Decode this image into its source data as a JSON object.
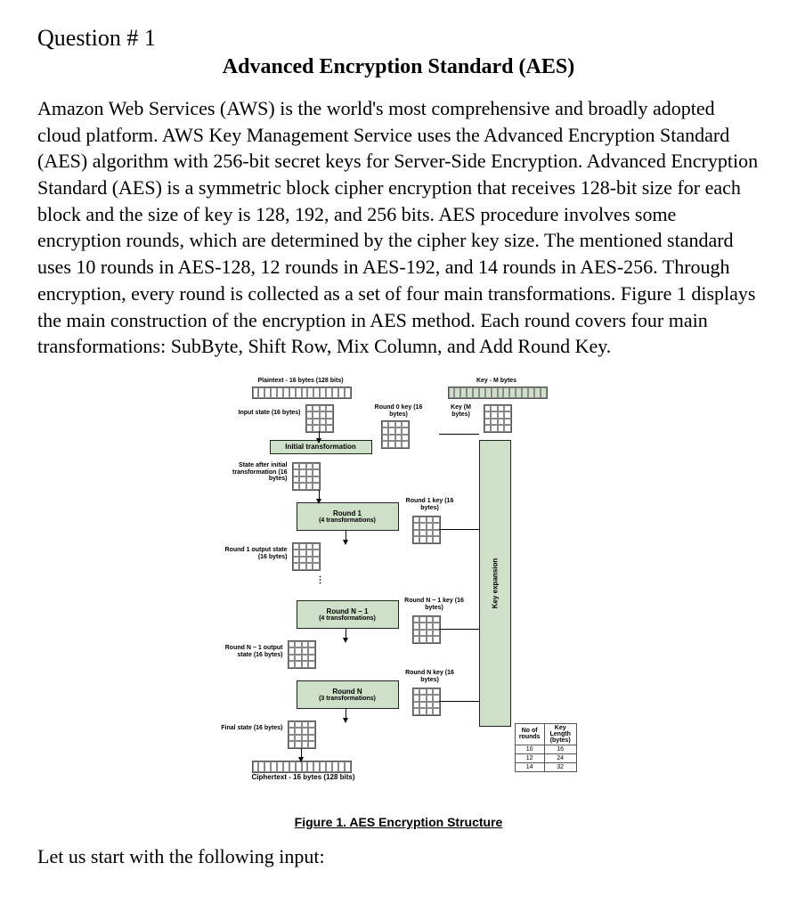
{
  "question_heading": "Question # 1",
  "title": "Advanced Encryption Standard (AES)",
  "body": "Amazon Web Services (AWS) is the world's most comprehensive and broadly adopted cloud platform. AWS Key Management Service uses the Advanced Encryption Standard (AES) algorithm with 256-bit secret keys for Server-Side Encryption. Advanced Encryption Standard (AES) is a symmetric block cipher encryption that receives 128-bit size for each block and the size of key is 128, 192, and 256 bits. AES procedure involves some encryption rounds, which are determined by the cipher key size. The mentioned standard uses 10 rounds in AES-128, 12 rounds in AES-192, and 14 rounds in AES-256. Through encryption, every round is collected as a set of four main transformations. Figure 1 displays the main construction of the encryption in AES method. Each round covers four main transformations: SubByte, Shift Row, Mix Column, and Add Round Key.",
  "closing": "Let us start with the following input:",
  "figure": {
    "caption": "Figure 1. AES Encryption Structure",
    "colors": {
      "box_fill": "#cfe0c9",
      "box_border": "#222222",
      "grid_border": "#888888",
      "bg": "#ffffff",
      "text": "#000000"
    },
    "plaintext_label": "Plaintext - 16 bytes (128 bits)",
    "key_label_top": "Key - M bytes",
    "input_state": "Input state\n(16 bytes)",
    "round0_key": "Round 0 key\n(16 bytes)",
    "key_m": "Key\n(M bytes)",
    "initial_trans": "Initial transformation",
    "state_after_initial": "State after\ninitial\ntransformation\n(16 bytes)",
    "round1_box": {
      "main": "Round 1",
      "sub": "(4 transformations)"
    },
    "round1_key": "Round 1 key\n(16 bytes)",
    "round1_out": "Round 1\noutput state\n(16 bytes)",
    "roundNm1_box": {
      "main": "Round N − 1",
      "sub": "(4 transformations)"
    },
    "roundNm1_key": "Round N − 1 key\n(16 bytes)",
    "roundNm1_out": "Round N − 1\noutput state\n(16 bytes)",
    "roundN_box": {
      "main": "Round N",
      "sub": "(3 transformations)"
    },
    "roundN_key": "Round N key\n(16 bytes)",
    "final_state": "Final state\n(16 bytes)",
    "ciphertext": "Ciphertext - 16 bytes (128 bits)",
    "key_expansion": "Key expansion",
    "table": {
      "headers": [
        "No of\nrounds",
        "Key\nLength\n(bytes)"
      ],
      "rows": [
        [
          "10",
          "16"
        ],
        [
          "12",
          "24"
        ],
        [
          "14",
          "32"
        ]
      ]
    }
  }
}
